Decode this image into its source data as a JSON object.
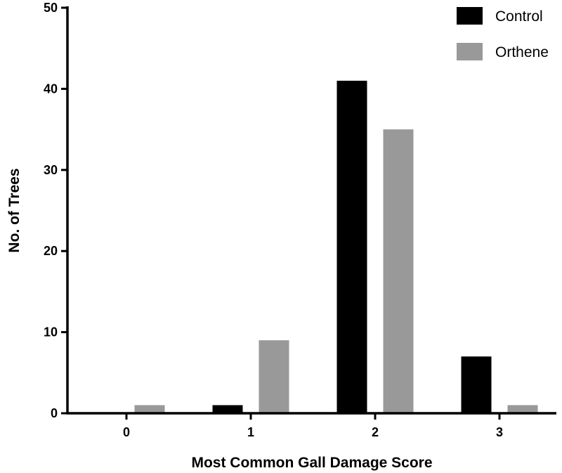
{
  "chart_data": {
    "type": "bar",
    "title": "",
    "xlabel": "Most Common Gall Damage Score",
    "ylabel": "No. of Trees",
    "categories": [
      "0",
      "1",
      "2",
      "3"
    ],
    "series": [
      {
        "name": "Control",
        "values": [
          0,
          1,
          41,
          7
        ],
        "color": "#000000"
      },
      {
        "name": "Orthene",
        "values": [
          1,
          9,
          35,
          1
        ],
        "color": "#999999"
      }
    ],
    "ylim": [
      0,
      50
    ],
    "yticks": [
      0,
      10,
      20,
      30,
      40,
      50
    ],
    "grid": false,
    "legend_position": "top-right"
  }
}
